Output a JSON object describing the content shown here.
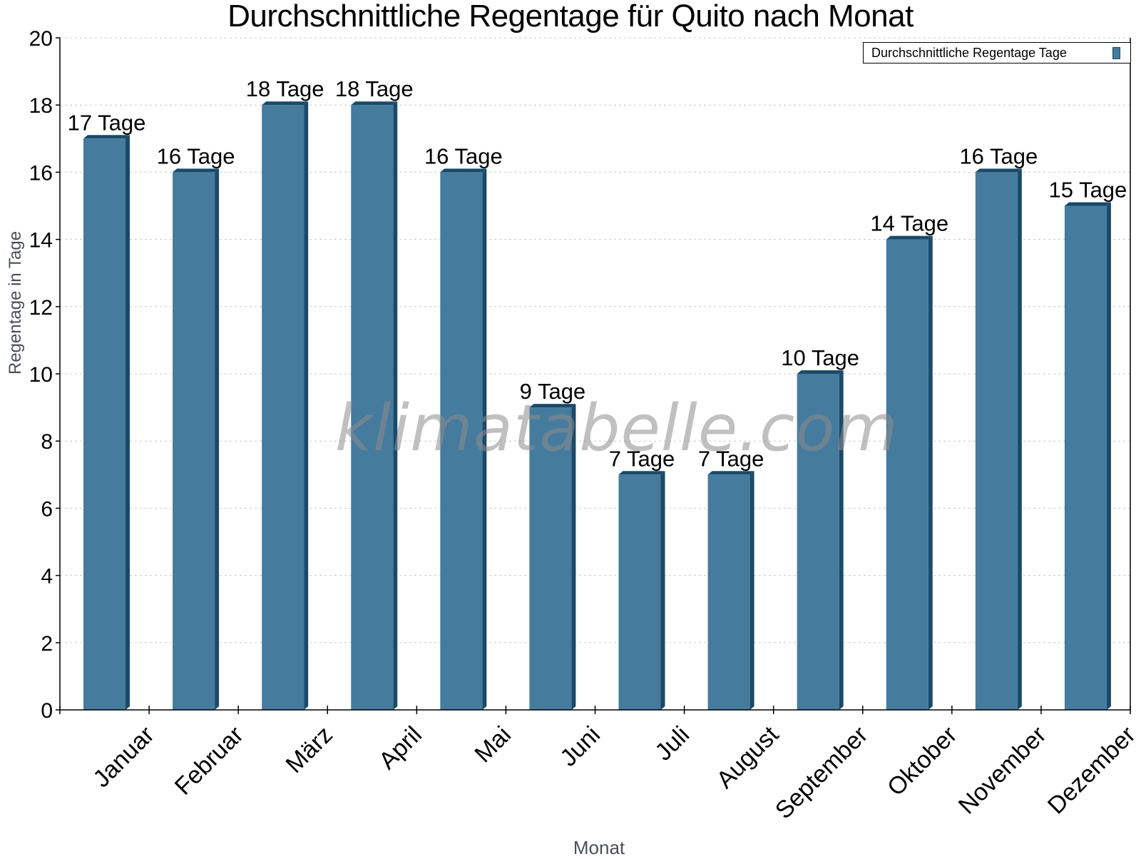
{
  "chart_data": {
    "type": "bar",
    "title": "Durchschnittliche Regentage für Quito nach Monat",
    "xlabel": "Monat",
    "ylabel": "Regentage in Tage",
    "ylim": [
      0,
      20
    ],
    "yticks": [
      0,
      2,
      4,
      6,
      8,
      10,
      12,
      14,
      16,
      18,
      20
    ],
    "grid": true,
    "legend_position": "top-right",
    "categories": [
      "Januar",
      "Februar",
      "März",
      "April",
      "Mai",
      "Juni",
      "Juli",
      "August",
      "September",
      "Oktober",
      "November",
      "Dezember"
    ],
    "series": [
      {
        "name": "Durchschnittliche Regentage Tage",
        "values": [
          17,
          16,
          18,
          18,
          16,
          9,
          7,
          7,
          10,
          14,
          16,
          15
        ],
        "labels": [
          "17 Tage",
          "16 Tage",
          "18 Tage",
          "18 Tage",
          "16 Tage",
          "9 Tage",
          "7 Tage",
          "7 Tage",
          "10 Tage",
          "14 Tage",
          "16 Tage",
          "15 Tage"
        ],
        "color": "#457b9d",
        "edge_color": "#1a4a6a"
      }
    ],
    "watermark": "klimatabelle.com"
  }
}
